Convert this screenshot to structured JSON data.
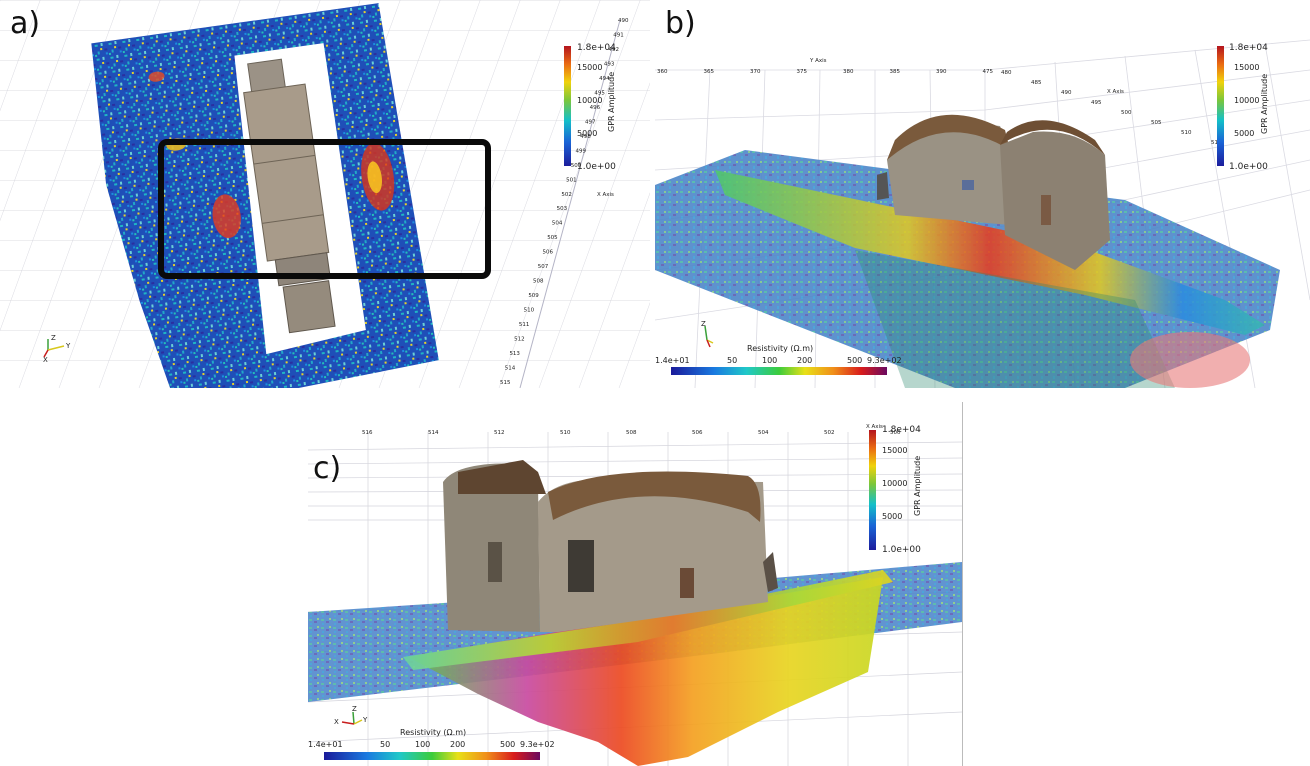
{
  "panels": {
    "a": {
      "label": "a)",
      "colorbar": {
        "max": "1.8e+04",
        "t1": "15000",
        "t2": "10000",
        "t3": "5000",
        "min": "1.0e+00",
        "title": "GPR Amplitude"
      },
      "axis_title": "X Axis",
      "axis_ticks": [
        "490",
        "491",
        "492",
        "493",
        "494",
        "495",
        "496",
        "497",
        "498",
        "499",
        "500",
        "501",
        "502",
        "503",
        "504",
        "505",
        "506",
        "507",
        "508",
        "509",
        "510",
        "511",
        "512",
        "513",
        "514",
        "515"
      ]
    },
    "b": {
      "label": "b)",
      "colorbar": {
        "max": "1.8e+04",
        "t1": "15000",
        "t2": "10000",
        "t3": "5000",
        "min": "1.0e+00",
        "title": "GPR Amplitude"
      },
      "resistivity": {
        "title": "Resistivity (Ω.m)",
        "ticks": [
          "1.4e+01",
          "50",
          "100",
          "200",
          "500",
          "9.3e+02"
        ]
      },
      "y_axis_title": "Y Axis",
      "y_ticks": [
        "360",
        "365",
        "370",
        "375",
        "380",
        "385",
        "390",
        "475"
      ],
      "x_axis_title": "X Axis",
      "x_ticks": [
        "480",
        "485",
        "490",
        "495",
        "500",
        "505",
        "510",
        "515"
      ]
    },
    "c": {
      "label": "c)",
      "colorbar": {
        "max": "1.8e+04",
        "t1": "15000",
        "t2": "10000",
        "t3": "5000",
        "min": "1.0e+00",
        "title": "GPR Amplitude"
      },
      "resistivity": {
        "title": "Resistivity (Ω.m)",
        "ticks": [
          "1.4e+01",
          "50",
          "100",
          "200",
          "500",
          "9.3e+02"
        ]
      },
      "x_axis_title": "X Axis",
      "x_ticks": [
        "516",
        "514",
        "512",
        "510",
        "508",
        "506",
        "504",
        "502",
        "500"
      ]
    }
  },
  "triad": {
    "x": "X",
    "y": "Y",
    "z": "Z"
  },
  "colors": {
    "gpr_low": "#1a2a9c",
    "gpr_mid": "#12b7c0",
    "gpr_high": "#d21e14",
    "building_roof": "#7a5a3c",
    "building_wall": "#9a9284"
  }
}
